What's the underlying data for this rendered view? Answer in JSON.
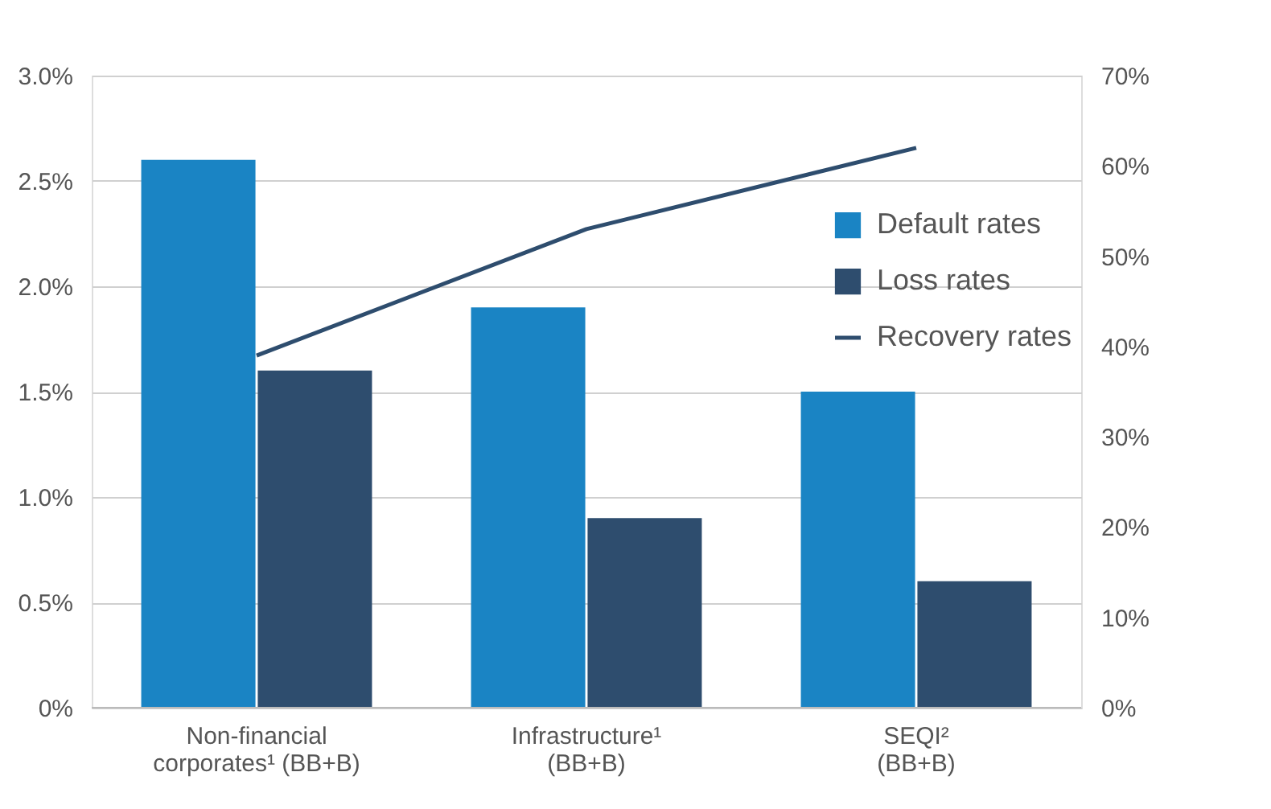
{
  "chart_data": {
    "type": "bar",
    "categories": [
      "Non-financial\ncorporates¹ (BB+B)",
      "Infrastructure¹\n(BB+B)",
      "SEQI²\n(BB+B)"
    ],
    "series": [
      {
        "name": "Default rates",
        "color": "#1a84c4",
        "values": [
          2.6,
          1.9,
          1.5
        ]
      },
      {
        "name": "Loss rates",
        "color": "#2e4d6e",
        "values": [
          1.6,
          0.9,
          0.6
        ]
      },
      {
        "name": "Recovery rates",
        "color": "#2e4d6e",
        "type": "line",
        "axis": "y2",
        "values": [
          39,
          53,
          62
        ]
      }
    ],
    "ylim": [
      0,
      3.0
    ],
    "yticks": [
      {
        "value": 0,
        "label": "0%"
      },
      {
        "value": 0.5,
        "label": "0.5%"
      },
      {
        "value": 1.0,
        "label": "1.0%"
      },
      {
        "value": 1.5,
        "label": "1.5%"
      },
      {
        "value": 2.0,
        "label": "2.0%"
      },
      {
        "value": 2.5,
        "label": "2.5%"
      },
      {
        "value": 3.0,
        "label": "3.0%"
      }
    ],
    "y2lim": [
      0,
      70
    ],
    "y2ticks": [
      {
        "value": 0,
        "label": "0%"
      },
      {
        "value": 10,
        "label": "10%"
      },
      {
        "value": 20,
        "label": "20%"
      },
      {
        "value": 30,
        "label": "30%"
      },
      {
        "value": 40,
        "label": "40%"
      },
      {
        "value": 50,
        "label": "50%"
      },
      {
        "value": 60,
        "label": "60%"
      },
      {
        "value": 70,
        "label": "70%"
      }
    ],
    "grid": "y",
    "legend": "right"
  }
}
